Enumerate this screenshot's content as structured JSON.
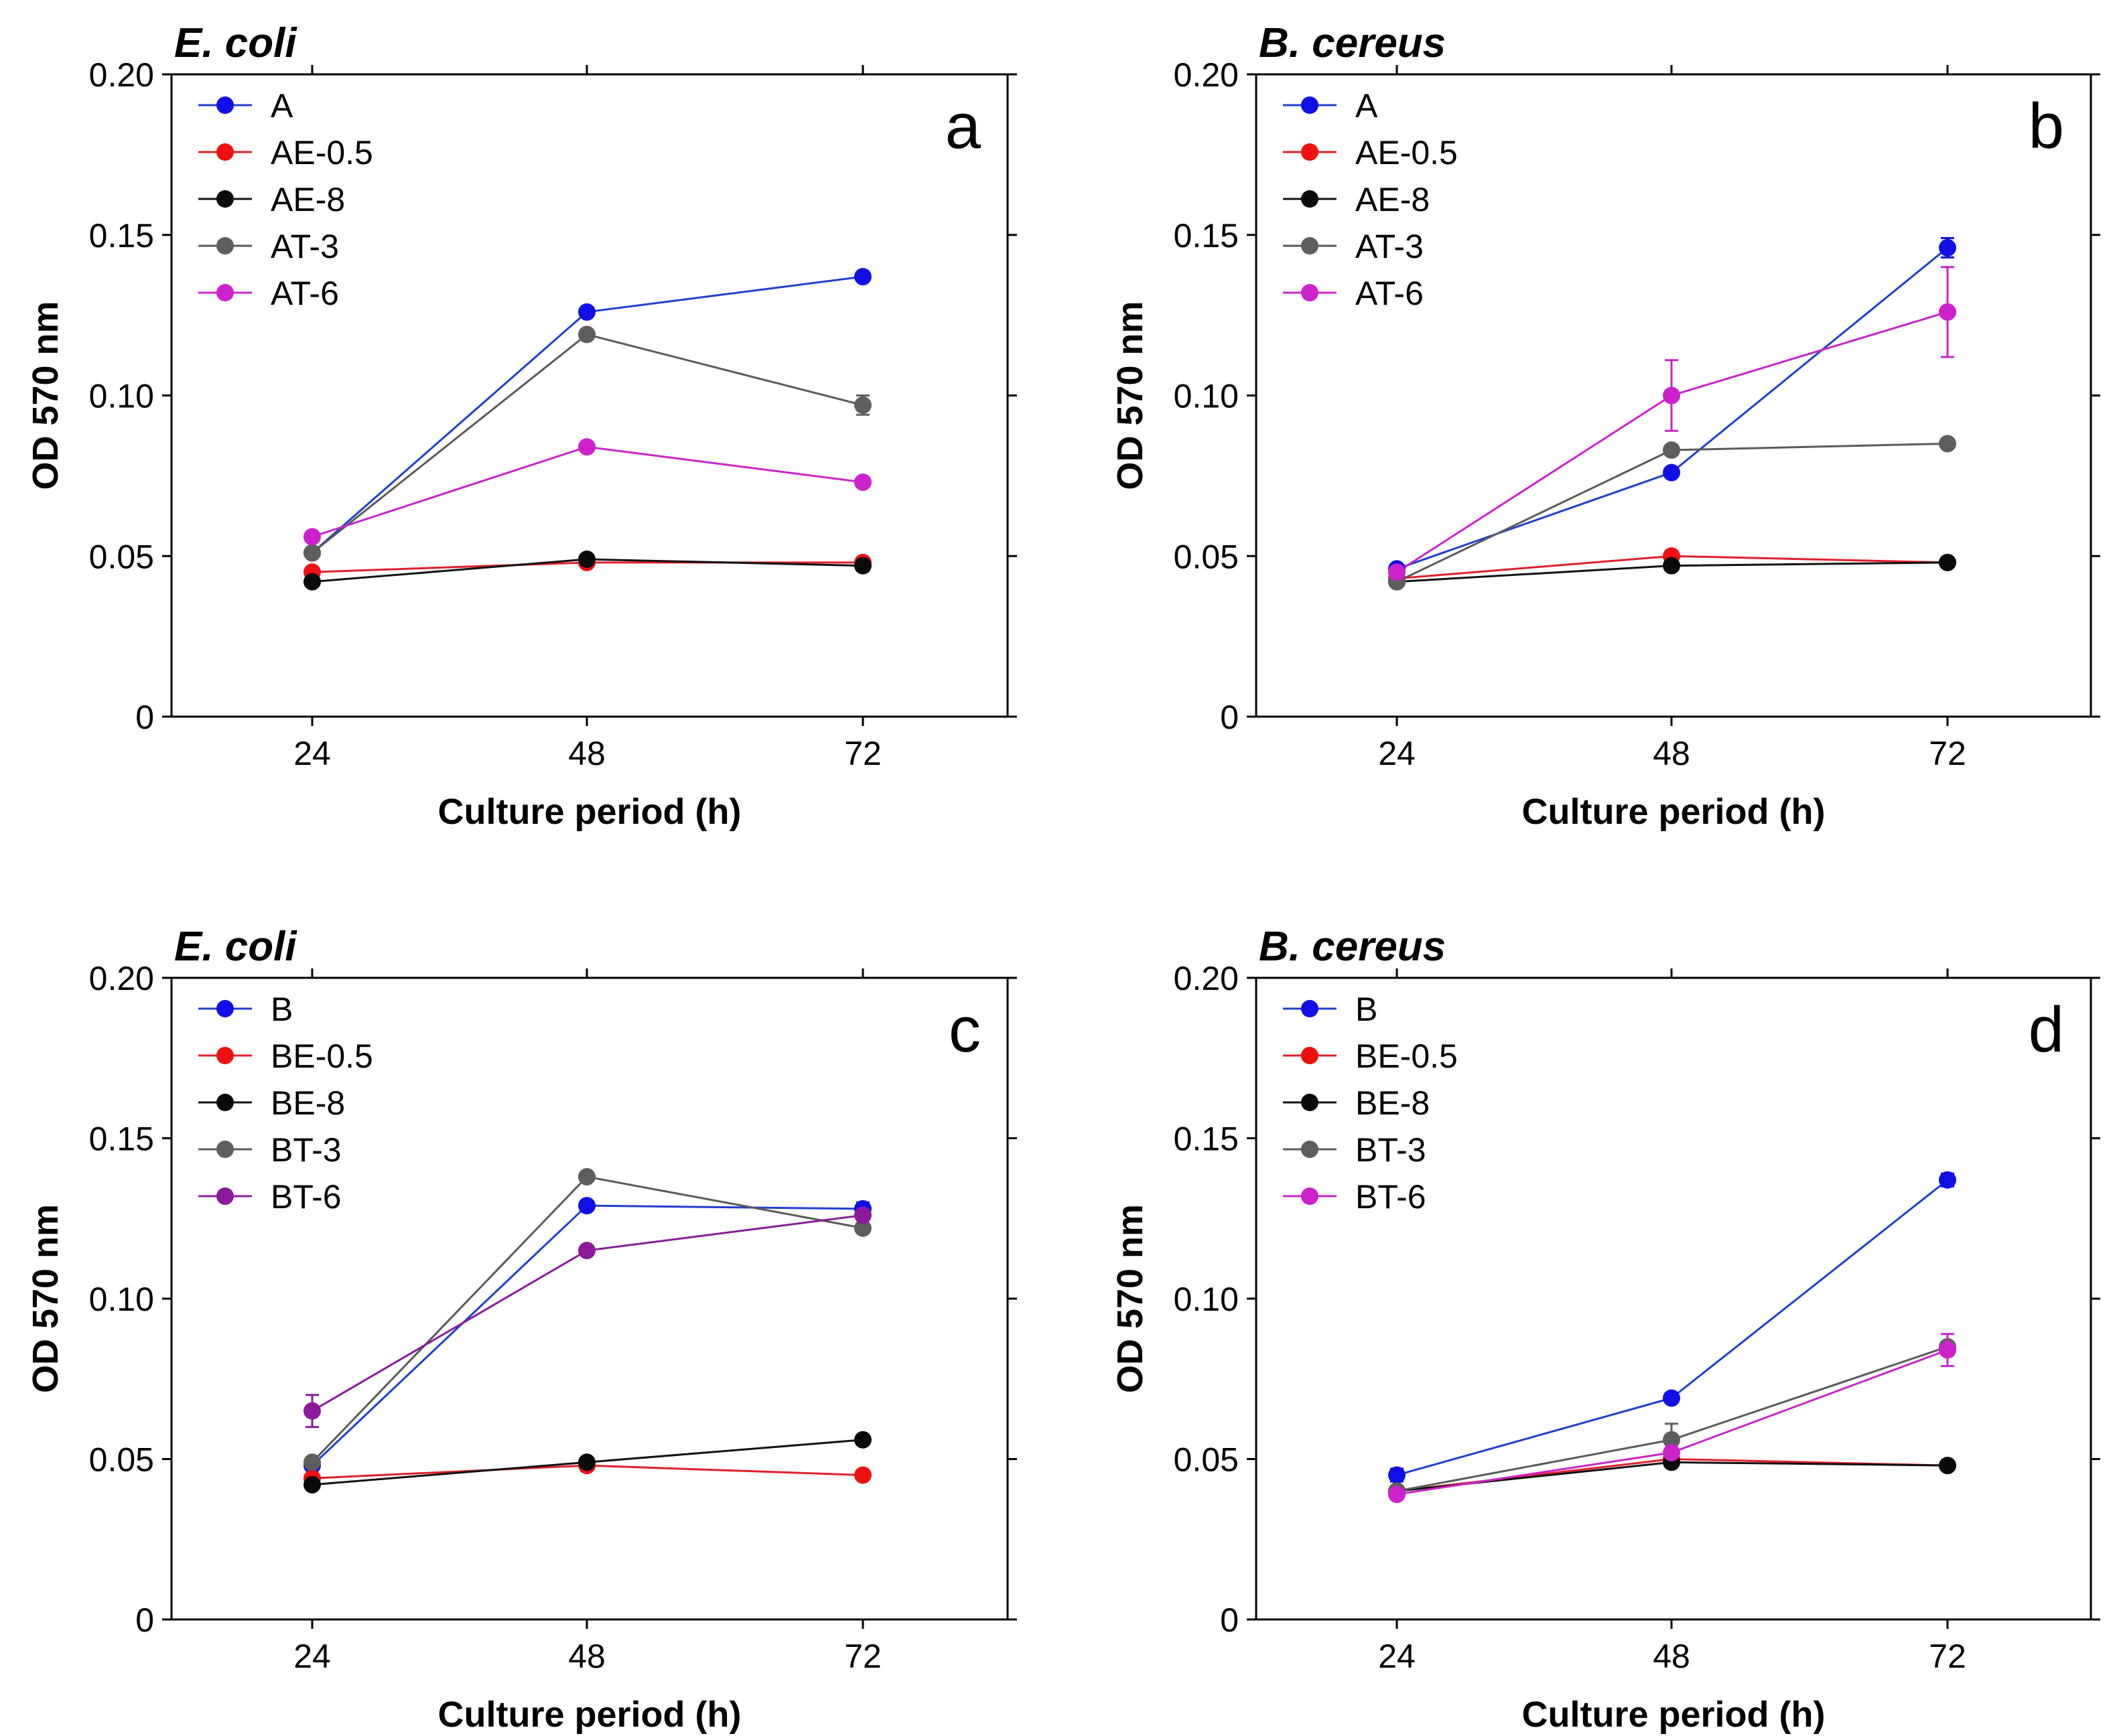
{
  "chart_data": [
    {
      "type": "line",
      "panel_letter": "a",
      "organism": "E. coli",
      "xlabel": "Culture period (h)",
      "ylabel": "OD 570 nm",
      "x": [
        24,
        48,
        72
      ],
      "x_tick_labels": [
        "24",
        "48",
        "72"
      ],
      "ylim": [
        0,
        0.2
      ],
      "y_tick_labels": [
        "0",
        "0.05",
        "0.10",
        "0.15",
        "0.20"
      ],
      "legend_position": "top-left",
      "series": [
        {
          "name": "A",
          "color": "#1010e6",
          "line_color": "#1f3fd0",
          "values": [
            0.051,
            0.126,
            0.137
          ],
          "errors": [
            0.001,
            0.001,
            0.001
          ]
        },
        {
          "name": "AE-0.5",
          "color": "#ee1111",
          "line_color": "#e0202a",
          "values": [
            0.045,
            0.048,
            0.048
          ],
          "errors": [
            0.001,
            0.001,
            0.001
          ]
        },
        {
          "name": "AE-8",
          "color": "#0a0a0a",
          "line_color": "#111111",
          "values": [
            0.042,
            0.049,
            0.047
          ],
          "errors": [
            0.001,
            0.001,
            0.001
          ]
        },
        {
          "name": "AT-3",
          "color": "#5e5e5e",
          "line_color": "#5a5a5a",
          "values": [
            0.051,
            0.119,
            0.097
          ],
          "errors": [
            0.001,
            0.001,
            0.003
          ]
        },
        {
          "name": "AT-6",
          "color": "#cc22cc",
          "line_color": "#cc22cc",
          "values": [
            0.056,
            0.084,
            0.073
          ],
          "errors": [
            0.001,
            0.001,
            0.001
          ]
        }
      ]
    },
    {
      "type": "line",
      "panel_letter": "b",
      "organism": "B. cereus",
      "xlabel": "Culture period (h)",
      "ylabel": "OD 570 nm",
      "x": [
        24,
        48,
        72
      ],
      "x_tick_labels": [
        "24",
        "48",
        "72"
      ],
      "ylim": [
        0,
        0.2
      ],
      "y_tick_labels": [
        "0",
        "0.05",
        "0.10",
        "0.15",
        "0.20"
      ],
      "legend_position": "top-left",
      "series": [
        {
          "name": "A",
          "color": "#1010e6",
          "line_color": "#1f3fd0",
          "values": [
            0.046,
            0.076,
            0.146
          ],
          "errors": [
            0.001,
            0.001,
            0.003
          ]
        },
        {
          "name": "AE-0.5",
          "color": "#ee1111",
          "line_color": "#e0202a",
          "values": [
            0.043,
            0.05,
            0.048
          ],
          "errors": [
            0.001,
            0.001,
            0.001
          ]
        },
        {
          "name": "AE-8",
          "color": "#0a0a0a",
          "line_color": "#111111",
          "values": [
            0.042,
            0.047,
            0.048
          ],
          "errors": [
            0.001,
            0.001,
            0.001
          ]
        },
        {
          "name": "AT-3",
          "color": "#5e5e5e",
          "line_color": "#5a5a5a",
          "values": [
            0.042,
            0.083,
            0.085
          ],
          "errors": [
            0.001,
            0.001,
            0.001
          ]
        },
        {
          "name": "AT-6",
          "color": "#cc22cc",
          "line_color": "#cc22cc",
          "values": [
            0.045,
            0.1,
            0.126
          ],
          "errors": [
            0.001,
            0.011,
            0.014
          ]
        }
      ]
    },
    {
      "type": "line",
      "panel_letter": "c",
      "organism": "E. coli",
      "xlabel": "Culture period (h)",
      "ylabel": "OD 570 nm",
      "x": [
        24,
        48,
        72
      ],
      "x_tick_labels": [
        "24",
        "48",
        "72"
      ],
      "ylim": [
        0,
        0.2
      ],
      "y_tick_labels": [
        "0",
        "0.05",
        "0.10",
        "0.15",
        "0.20"
      ],
      "legend_position": "top-left",
      "series": [
        {
          "name": "B",
          "color": "#1010e6",
          "line_color": "#1f3fd0",
          "values": [
            0.048,
            0.129,
            0.128
          ],
          "errors": [
            0.001,
            0.001,
            0.002
          ]
        },
        {
          "name": "BE-0.5",
          "color": "#ee1111",
          "line_color": "#e0202a",
          "values": [
            0.044,
            0.048,
            0.045
          ],
          "errors": [
            0.001,
            0.001,
            0.001
          ]
        },
        {
          "name": "BE-8",
          "color": "#0a0a0a",
          "line_color": "#111111",
          "values": [
            0.042,
            0.049,
            0.056
          ],
          "errors": [
            0.001,
            0.001,
            0.001
          ]
        },
        {
          "name": "BT-3",
          "color": "#5e5e5e",
          "line_color": "#5a5a5a",
          "values": [
            0.049,
            0.138,
            0.122
          ],
          "errors": [
            0.001,
            0.001,
            0.001
          ]
        },
        {
          "name": "BT-6",
          "color": "#8c1b9c",
          "line_color": "#8c1b9c",
          "values": [
            0.065,
            0.115,
            0.126
          ],
          "errors": [
            0.005,
            0.001,
            0.001
          ]
        }
      ]
    },
    {
      "type": "line",
      "panel_letter": "d",
      "organism": "B. cereus",
      "xlabel": "Culture period (h)",
      "ylabel": "OD 570 nm",
      "x": [
        24,
        48,
        72
      ],
      "x_tick_labels": [
        "24",
        "48",
        "72"
      ],
      "ylim": [
        0,
        0.2
      ],
      "y_tick_labels": [
        "0",
        "0.05",
        "0.10",
        "0.15",
        "0.20"
      ],
      "legend_position": "top-left",
      "series": [
        {
          "name": "B",
          "color": "#1010e6",
          "line_color": "#1f3fd0",
          "values": [
            0.045,
            0.069,
            0.137
          ],
          "errors": [
            0.002,
            0.001,
            0.002
          ]
        },
        {
          "name": "BE-0.5",
          "color": "#ee1111",
          "line_color": "#e0202a",
          "values": [
            0.04,
            0.05,
            0.048
          ],
          "errors": [
            0.001,
            0.001,
            0.001
          ]
        },
        {
          "name": "BE-8",
          "color": "#0a0a0a",
          "line_color": "#111111",
          "values": [
            0.04,
            0.049,
            0.048
          ],
          "errors": [
            0.001,
            0.001,
            0.001
          ]
        },
        {
          "name": "BT-3",
          "color": "#5e5e5e",
          "line_color": "#5a5a5a",
          "values": [
            0.04,
            0.056,
            0.085
          ],
          "errors": [
            0.001,
            0.005,
            0.001
          ]
        },
        {
          "name": "BT-6",
          "color": "#cc22cc",
          "line_color": "#cc22cc",
          "values": [
            0.039,
            0.052,
            0.084
          ],
          "errors": [
            0.001,
            0.001,
            0.005
          ]
        }
      ]
    }
  ]
}
